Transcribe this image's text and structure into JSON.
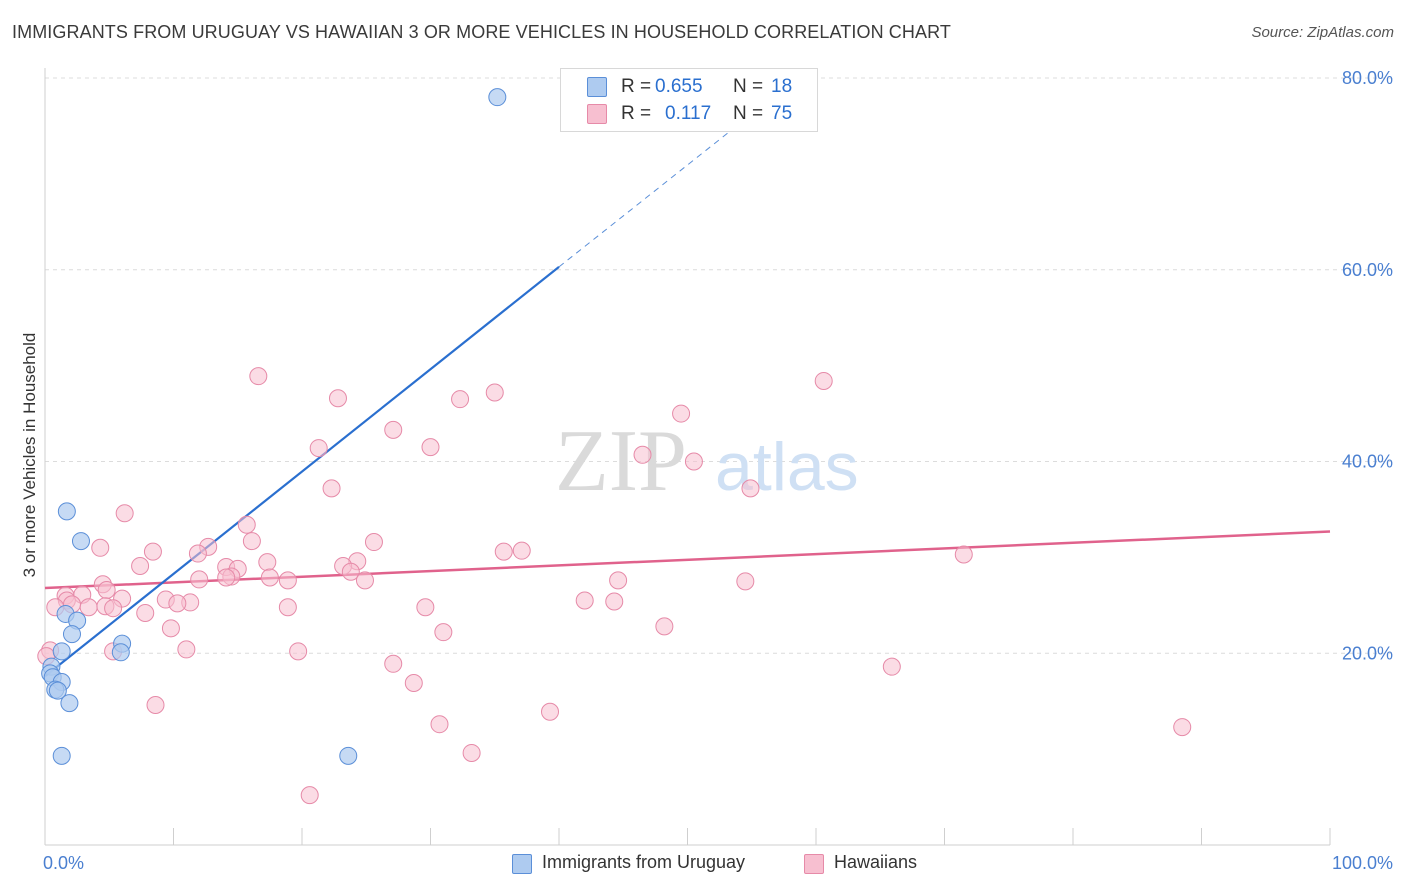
{
  "header": {
    "title": "IMMIGRANTS FROM URUGUAY VS HAWAIIAN 3 OR MORE VEHICLES IN HOUSEHOLD CORRELATION CHART",
    "source": "Source: ZipAtlas.com"
  },
  "watermark": {
    "zip": "ZIP",
    "atlas": "atlas"
  },
  "legend_top": {
    "rows": [
      {
        "r_label": "R =",
        "r_value": "0.655",
        "n_label": "N =",
        "n_value": "18"
      },
      {
        "r_label": "R =",
        "r_value": "0.117",
        "n_label": "N =",
        "n_value": "75"
      }
    ]
  },
  "bottom_legend": {
    "series1": "Immigrants from Uruguay",
    "series2": "Hawaiians"
  },
  "colors": {
    "blue_fill": "#aecbf0",
    "blue_stroke": "#5b8fd8",
    "blue_line": "#2a6fcf",
    "pink_fill": "#f7bfd0",
    "pink_stroke": "#e68aa8",
    "pink_line": "#e0628c",
    "axis_text": "#4a7fd0",
    "grid": "#dcdcdc"
  },
  "chart_data": {
    "type": "scatter",
    "title": "IMMIGRANTS FROM URUGUAY VS HAWAIIAN 3 OR MORE VEHICLES IN HOUSEHOLD CORRELATION CHART",
    "xlabel": "",
    "ylabel": "3 or more Vehicles in Household",
    "xlim": [
      0,
      100
    ],
    "ylim": [
      0,
      80
    ],
    "x_tick_labels": [
      "0.0%",
      "100.0%"
    ],
    "y_ticks": [
      20,
      40,
      60,
      80
    ],
    "y_tick_labels": [
      "20.0%",
      "40.0%",
      "60.0%",
      "80.0%"
    ],
    "series": [
      {
        "name": "Immigrants from Uruguay",
        "R": 0.655,
        "N": 18,
        "points": [
          [
            35.2,
            78.0
          ],
          [
            1.7,
            34.8
          ],
          [
            2.8,
            31.7
          ],
          [
            1.6,
            24.1
          ],
          [
            2.5,
            23.4
          ],
          [
            2.1,
            22.0
          ],
          [
            6.0,
            21.0
          ],
          [
            5.9,
            20.1
          ],
          [
            1.3,
            20.2
          ],
          [
            0.5,
            18.6
          ],
          [
            0.4,
            17.9
          ],
          [
            0.6,
            17.5
          ],
          [
            1.3,
            17.0
          ],
          [
            0.8,
            16.2
          ],
          [
            1.0,
            16.1
          ],
          [
            1.9,
            14.8
          ],
          [
            1.3,
            9.3
          ],
          [
            23.6,
            9.3
          ]
        ],
        "trend": {
          "x0": 0,
          "y0": 17.6,
          "x1": 40,
          "y1": 60.3,
          "dashed_to_x": 54.3,
          "dashed_to_y": 75.5
        }
      },
      {
        "name": "Hawaiians",
        "R": 0.117,
        "N": 75,
        "points": [
          [
            16.6,
            48.9
          ],
          [
            60.6,
            48.4
          ],
          [
            35.0,
            47.2
          ],
          [
            22.8,
            46.6
          ],
          [
            32.3,
            46.5
          ],
          [
            49.5,
            45.0
          ],
          [
            27.1,
            43.3
          ],
          [
            21.3,
            41.4
          ],
          [
            30.0,
            41.5
          ],
          [
            46.5,
            40.7
          ],
          [
            50.5,
            40.0
          ],
          [
            22.3,
            37.2
          ],
          [
            54.9,
            37.2
          ],
          [
            6.2,
            34.6
          ],
          [
            15.7,
            33.4
          ],
          [
            4.3,
            31.0
          ],
          [
            12.7,
            31.1
          ],
          [
            25.6,
            31.6
          ],
          [
            16.1,
            31.7
          ],
          [
            8.4,
            30.6
          ],
          [
            37.1,
            30.7
          ],
          [
            35.7,
            30.6
          ],
          [
            11.9,
            30.4
          ],
          [
            71.5,
            30.3
          ],
          [
            17.3,
            29.5
          ],
          [
            24.3,
            29.6
          ],
          [
            7.4,
            29.1
          ],
          [
            23.2,
            29.1
          ],
          [
            14.1,
            29.0
          ],
          [
            23.8,
            28.5
          ],
          [
            15.0,
            28.8
          ],
          [
            14.5,
            28.0
          ],
          [
            14.1,
            27.9
          ],
          [
            17.5,
            27.9
          ],
          [
            18.9,
            27.6
          ],
          [
            12.0,
            27.7
          ],
          [
            24.9,
            27.6
          ],
          [
            44.6,
            27.6
          ],
          [
            54.5,
            27.5
          ],
          [
            4.5,
            27.2
          ],
          [
            1.6,
            26.0
          ],
          [
            2.9,
            26.1
          ],
          [
            4.8,
            26.6
          ],
          [
            1.7,
            25.5
          ],
          [
            9.4,
            25.6
          ],
          [
            6.0,
            25.7
          ],
          [
            42.0,
            25.5
          ],
          [
            11.3,
            25.3
          ],
          [
            44.3,
            25.4
          ],
          [
            10.3,
            25.2
          ],
          [
            0.8,
            24.8
          ],
          [
            2.1,
            25.1
          ],
          [
            3.4,
            24.8
          ],
          [
            4.7,
            24.9
          ],
          [
            5.3,
            24.7
          ],
          [
            18.9,
            24.8
          ],
          [
            29.6,
            24.8
          ],
          [
            7.8,
            24.2
          ],
          [
            9.8,
            22.6
          ],
          [
            31.0,
            22.2
          ],
          [
            48.2,
            22.8
          ],
          [
            0.4,
            20.3
          ],
          [
            11.0,
            20.4
          ],
          [
            5.3,
            20.2
          ],
          [
            19.7,
            20.2
          ],
          [
            27.1,
            18.9
          ],
          [
            65.9,
            18.6
          ],
          [
            28.7,
            16.9
          ],
          [
            8.6,
            14.6
          ],
          [
            39.3,
            13.9
          ],
          [
            30.7,
            12.6
          ],
          [
            88.5,
            12.3
          ],
          [
            33.2,
            9.6
          ],
          [
            20.6,
            5.2
          ],
          [
            0.1,
            19.7
          ]
        ],
        "trend": {
          "x0": 0,
          "y0": 26.8,
          "x1": 100,
          "y1": 32.7
        }
      }
    ]
  }
}
